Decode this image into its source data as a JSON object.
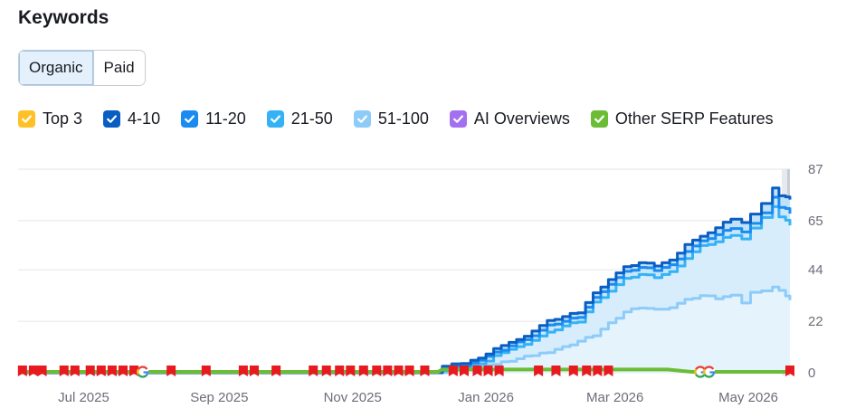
{
  "title": "Keywords",
  "tabs": [
    {
      "label": "Organic",
      "active": true
    },
    {
      "label": "Paid",
      "active": false
    }
  ],
  "legend": [
    {
      "label": "Top 3",
      "color": "#ffc127",
      "checked": true
    },
    {
      "label": "4-10",
      "color": "#0a5ec2",
      "checked": true
    },
    {
      "label": "11-20",
      "color": "#1a8cf0",
      "checked": true
    },
    {
      "label": "21-50",
      "color": "#35b2f5",
      "checked": true
    },
    {
      "label": "51-100",
      "color": "#8dccf9",
      "checked": true
    },
    {
      "label": "AI Overviews",
      "color": "#a371f0",
      "checked": true
    },
    {
      "label": "Other SERP Features",
      "color": "#6bbd36",
      "checked": true
    }
  ],
  "chart_data": {
    "type": "area",
    "x_ticks": [
      "Jul 2025",
      "Sep 2025",
      "Nov 2025",
      "Jan 2026",
      "Mar 2026",
      "May 2026"
    ],
    "y_ticks": [
      0,
      22,
      44,
      65,
      87
    ],
    "ylim": [
      0,
      87
    ],
    "xlim": [
      "2025-06-01",
      "2026-05-20"
    ],
    "grid": true,
    "series": [
      {
        "name": "4-10",
        "color": "#0a5ec2",
        "points": [
          [
            "2025-06-01",
            0
          ],
          [
            "2025-12-10",
            0
          ],
          [
            "2025-12-12",
            3
          ],
          [
            "2025-12-25",
            5
          ],
          [
            "2026-01-01",
            8
          ],
          [
            "2026-01-08",
            12
          ],
          [
            "2026-01-15",
            14
          ],
          [
            "2026-01-22",
            18
          ],
          [
            "2026-01-29",
            22
          ],
          [
            "2026-02-05",
            24
          ],
          [
            "2026-02-12",
            26
          ],
          [
            "2026-02-19",
            34
          ],
          [
            "2026-02-26",
            40
          ],
          [
            "2026-03-05",
            45
          ],
          [
            "2026-03-12",
            47
          ],
          [
            "2026-03-19",
            46
          ],
          [
            "2026-03-26",
            48
          ],
          [
            "2026-04-02",
            55
          ],
          [
            "2026-04-09",
            58
          ],
          [
            "2026-04-16",
            62
          ],
          [
            "2026-04-23",
            66
          ],
          [
            "2026-04-28",
            64
          ],
          [
            "2026-05-02",
            68
          ],
          [
            "2026-05-07",
            72
          ],
          [
            "2026-05-12",
            79
          ],
          [
            "2026-05-15",
            76
          ],
          [
            "2026-05-18",
            75
          ],
          [
            "2026-05-20",
            74
          ]
        ]
      },
      {
        "name": "11-20",
        "color": "#1a8cf0",
        "points": [
          [
            "2025-06-01",
            0
          ],
          [
            "2025-12-10",
            0
          ],
          [
            "2025-12-12",
            2
          ],
          [
            "2025-12-25",
            4
          ],
          [
            "2026-01-01",
            7
          ],
          [
            "2026-01-08",
            10
          ],
          [
            "2026-01-15",
            13
          ],
          [
            "2026-01-22",
            16
          ],
          [
            "2026-01-29",
            20
          ],
          [
            "2026-02-05",
            22
          ],
          [
            "2026-02-12",
            24
          ],
          [
            "2026-02-19",
            32
          ],
          [
            "2026-02-26",
            38
          ],
          [
            "2026-03-05",
            43
          ],
          [
            "2026-03-12",
            45
          ],
          [
            "2026-03-19",
            44
          ],
          [
            "2026-03-26",
            46
          ],
          [
            "2026-04-02",
            52
          ],
          [
            "2026-04-09",
            56
          ],
          [
            "2026-04-16",
            59
          ],
          [
            "2026-04-23",
            62
          ],
          [
            "2026-04-28",
            60
          ],
          [
            "2026-05-02",
            64
          ],
          [
            "2026-05-07",
            68
          ],
          [
            "2026-05-12",
            75
          ],
          [
            "2026-05-15",
            71
          ],
          [
            "2026-05-18",
            70
          ],
          [
            "2026-05-20",
            68
          ]
        ]
      },
      {
        "name": "21-50",
        "color": "#35b2f5",
        "points": [
          [
            "2025-06-01",
            0
          ],
          [
            "2025-12-10",
            0
          ],
          [
            "2025-12-12",
            1
          ],
          [
            "2025-12-25",
            3
          ],
          [
            "2026-01-01",
            5
          ],
          [
            "2026-01-08",
            9
          ],
          [
            "2026-01-15",
            11
          ],
          [
            "2026-01-22",
            14
          ],
          [
            "2026-01-29",
            17
          ],
          [
            "2026-02-05",
            20
          ],
          [
            "2026-02-12",
            22
          ],
          [
            "2026-02-19",
            30
          ],
          [
            "2026-02-26",
            35
          ],
          [
            "2026-03-05",
            40
          ],
          [
            "2026-03-12",
            42
          ],
          [
            "2026-03-19",
            41
          ],
          [
            "2026-03-26",
            43
          ],
          [
            "2026-04-02",
            49
          ],
          [
            "2026-04-09",
            54
          ],
          [
            "2026-04-16",
            56
          ],
          [
            "2026-04-23",
            59
          ],
          [
            "2026-04-28",
            57
          ],
          [
            "2026-05-02",
            62
          ],
          [
            "2026-05-07",
            66
          ],
          [
            "2026-05-12",
            71
          ],
          [
            "2026-05-15",
            67
          ],
          [
            "2026-05-18",
            65
          ],
          [
            "2026-05-20",
            63
          ]
        ]
      },
      {
        "name": "51-100",
        "color": "#8dccf9",
        "points": [
          [
            "2025-06-01",
            0
          ],
          [
            "2025-12-10",
            0
          ],
          [
            "2025-12-15",
            1
          ],
          [
            "2026-01-01",
            3
          ],
          [
            "2026-01-15",
            6
          ],
          [
            "2026-01-29",
            9
          ],
          [
            "2026-02-05",
            11
          ],
          [
            "2026-02-19",
            16
          ],
          [
            "2026-02-26",
            21
          ],
          [
            "2026-03-05",
            26
          ],
          [
            "2026-03-12",
            28
          ],
          [
            "2026-03-19",
            27
          ],
          [
            "2026-03-26",
            28
          ],
          [
            "2026-04-02",
            31
          ],
          [
            "2026-04-09",
            33
          ],
          [
            "2026-04-16",
            32
          ],
          [
            "2026-04-23",
            33
          ],
          [
            "2026-04-28",
            30
          ],
          [
            "2026-05-02",
            34
          ],
          [
            "2026-05-07",
            35
          ],
          [
            "2026-05-12",
            37
          ],
          [
            "2026-05-15",
            35
          ],
          [
            "2026-05-18",
            33
          ],
          [
            "2026-05-20",
            31
          ]
        ]
      },
      {
        "name": "Other SERP Features",
        "color": "#6bbd36",
        "points": [
          [
            "2025-06-01",
            0
          ],
          [
            "2025-12-10",
            0
          ],
          [
            "2025-12-12",
            1
          ],
          [
            "2026-01-15",
            1
          ],
          [
            "2026-03-25",
            1
          ],
          [
            "2026-04-05",
            0
          ],
          [
            "2026-05-20",
            0
          ]
        ]
      }
    ],
    "markers": {
      "flags": [
        "2025-06-03",
        "2025-06-08",
        "2025-06-12",
        "2025-06-22",
        "2025-06-27",
        "2025-07-04",
        "2025-07-09",
        "2025-07-14",
        "2025-07-19",
        "2025-07-24",
        "2025-08-10",
        "2025-08-26",
        "2025-09-12",
        "2025-09-17",
        "2025-09-27",
        "2025-10-14",
        "2025-10-20",
        "2025-10-26",
        "2025-10-31",
        "2025-11-06",
        "2025-11-12",
        "2025-11-17",
        "2025-11-22",
        "2025-11-27",
        "2025-12-04",
        "2025-12-17",
        "2025-12-22",
        "2025-12-28",
        "2026-01-02",
        "2026-01-07",
        "2026-01-25",
        "2026-02-02",
        "2026-02-10",
        "2026-02-16",
        "2026-02-21",
        "2026-02-26",
        "2026-05-20"
      ],
      "google": [
        "2025-07-28",
        "2026-04-09",
        "2026-04-13"
      ]
    }
  }
}
